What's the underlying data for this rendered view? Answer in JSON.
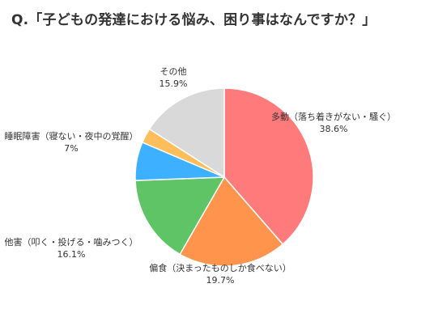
{
  "chart_data": {
    "type": "pie",
    "title": "Q.「子どもの発達における悩み、困り事はなんですか？」",
    "slices": [
      {
        "label": "多動（落ち着きがない・騒ぐ）",
        "value": 38.6,
        "display": "38.6%",
        "color": "#FF7B7B"
      },
      {
        "label": "偏食（決まったものしか食べない）",
        "value": 19.7,
        "display": "19.7%",
        "color": "#FF944D"
      },
      {
        "label": "他害（叩く・投げる・噛みつく）",
        "value": 16.1,
        "display": "16.1%",
        "color": "#5EC466"
      },
      {
        "label": "睡眠障害（寝ない・夜中の覚醒）",
        "value": 7,
        "display": "7%",
        "color": "#3DB1FF"
      },
      {
        "label": "",
        "value": 2.7,
        "display": "",
        "color": "#FFBE5C"
      },
      {
        "label": "その他",
        "value": 15.9,
        "display": "15.9%",
        "color": "#D9D9D9"
      }
    ],
    "start_angle": "12 o'clock",
    "direction": "clockwise",
    "legend": "none"
  }
}
